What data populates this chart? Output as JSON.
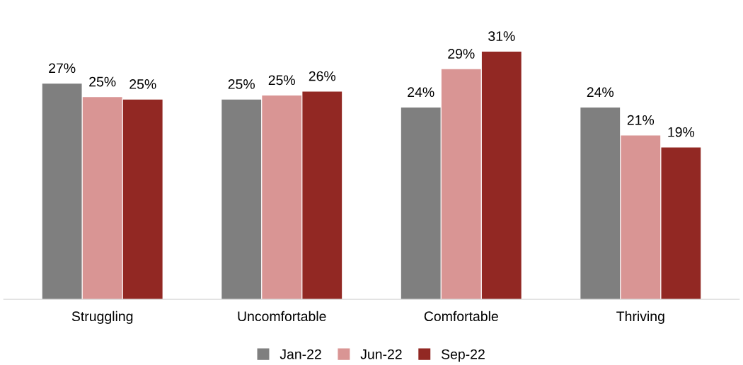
{
  "chart_data": {
    "type": "bar",
    "categories": [
      "Struggling",
      "Uncomfortable",
      "Comfortable",
      "Thriving"
    ],
    "series": [
      {
        "name": "Jan-22",
        "color": "#7f7f7f",
        "values": [
          27,
          25,
          24,
          24
        ],
        "value_labels": [
          "27%",
          "25%",
          "24%",
          "24%"
        ]
      },
      {
        "name": "Jun-22",
        "color": "#d99594",
        "values": [
          25.3,
          25.5,
          28.8,
          20.5
        ],
        "value_labels": [
          "25%",
          "25%",
          "29%",
          "21%"
        ]
      },
      {
        "name": "Sep-22",
        "color": "#922823",
        "values": [
          25,
          26,
          31,
          19
        ],
        "value_labels": [
          "25%",
          "26%",
          "31%",
          "19%"
        ]
      }
    ],
    "legend": "bottom",
    "grid": false,
    "tick_labels": "x"
  }
}
